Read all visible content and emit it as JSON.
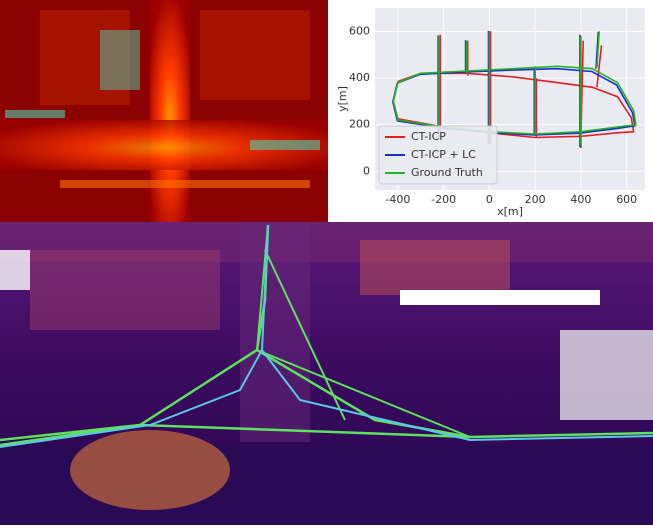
{
  "chart_data": {
    "type": "line",
    "xlabel": "x[m]",
    "ylabel": "y[m]",
    "xlim": [
      -500,
      680
    ],
    "ylim": [
      -80,
      700
    ],
    "xticks": [
      -400,
      -200,
      0,
      200,
      400,
      600
    ],
    "yticks": [
      0,
      200,
      400,
      600
    ],
    "grid": true,
    "legend": "lower left",
    "series": [
      {
        "name": "CT-ICP",
        "color": "#e32020",
        "x": [
          -400,
          -300,
          -100,
          100,
          300,
          450,
          560,
          620,
          630,
          560,
          400,
          200,
          0,
          -200,
          -400,
          -420,
          -400,
          null,
          -215,
          -215,
          -215,
          -215,
          null,
          -95,
          -95,
          null,
          5,
          5,
          5,
          5,
          null,
          205,
          205,
          null,
          410,
          405,
          400,
          400,
          null,
          490,
          470
        ],
        "y": [
          385,
          420,
          420,
          405,
          380,
          360,
          320,
          230,
          170,
          165,
          150,
          145,
          165,
          190,
          225,
          300,
          385,
          null,
          585,
          400,
          200,
          140,
          null,
          560,
          410,
          null,
          600,
          420,
          165,
          120,
          null,
          400,
          145,
          null,
          560,
          360,
          150,
          100,
          null,
          540,
          360
        ]
      },
      {
        "name": "CT-ICP + LC",
        "color": "#1a2fc8",
        "x": [
          -402,
          -302,
          -102,
          98,
          298,
          448,
          556,
          626,
          636,
          558,
          398,
          198,
          -2,
          -202,
          -402,
          -422,
          -402,
          null,
          -224,
          -224,
          -224,
          -224,
          null,
          -104,
          -104,
          null,
          -4,
          -4,
          -4,
          -4,
          null,
          196,
          196,
          null,
          396,
          396,
          396,
          396,
          null,
          476,
          466
        ],
        "y": [
          378,
          416,
          426,
          434,
          440,
          428,
          370,
          250,
          195,
          184,
          164,
          156,
          166,
          186,
          216,
          298,
          378,
          null,
          582,
          398,
          198,
          138,
          null,
          562,
          418,
          null,
          602,
          428,
          166,
          118,
          null,
          444,
          156,
          null,
          585,
          440,
          164,
          104,
          null,
          598,
          440
        ]
      },
      {
        "name": "Ground Truth",
        "color": "#22b322",
        "x": [
          -400,
          -300,
          -100,
          100,
          300,
          450,
          560,
          630,
          640,
          560,
          400,
          200,
          0,
          -200,
          -400,
          -420,
          -400,
          null,
          -220,
          -220,
          -220,
          -220,
          null,
          -100,
          -100,
          null,
          0,
          0,
          0,
          0,
          null,
          200,
          200,
          null,
          400,
          400,
          400,
          400,
          null,
          480,
          470
        ],
        "y": [
          380,
          420,
          430,
          440,
          450,
          440,
          380,
          260,
          200,
          190,
          170,
          160,
          170,
          190,
          220,
          300,
          380,
          null,
          580,
          400,
          200,
          140,
          null,
          560,
          420,
          null,
          600,
          430,
          170,
          120,
          null,
          450,
          160,
          null,
          580,
          450,
          170,
          110,
          null,
          600,
          445
        ]
      }
    ]
  }
}
